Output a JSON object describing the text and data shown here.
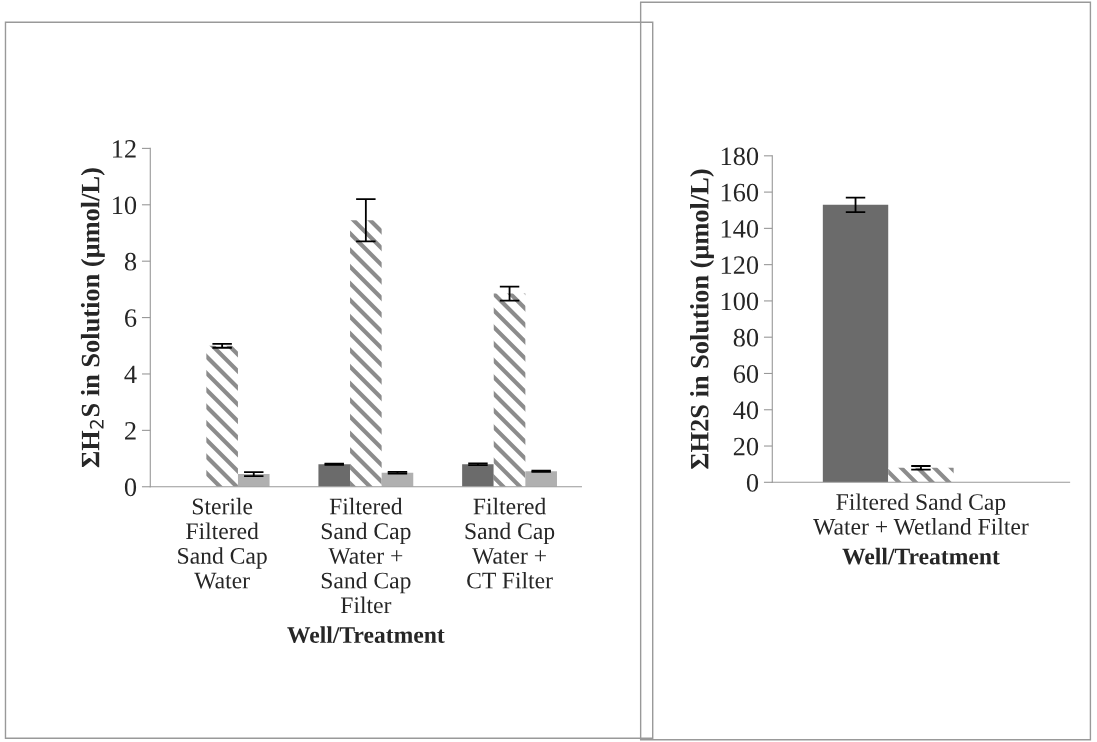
{
  "chart_data": [
    {
      "type": "bar",
      "ylabel": "ΣH$_{2}$S in Solution (μmol/L)",
      "xlabel": "Well/Treatment",
      "categories": [
        "Sterile\nFiltered\nSand Cap\nWater",
        "Filtered\nSand Cap\nWater +\nSand Cap\nFilter",
        "Filtered\nSand Cap\nWater +\nCT Filter"
      ],
      "ylim": [
        0,
        12
      ],
      "yticks": [
        0,
        2,
        4,
        6,
        8,
        10,
        12
      ],
      "grid": false,
      "legend": false,
      "series": [
        {
          "color": "#6b6b6b",
          "values": [
            0,
            0.8,
            0.8
          ],
          "errors": [
            null,
            0.02,
            0.03
          ]
        },
        {
          "color": "#8c8c8c",
          "values": [
            5.0,
            9.45,
            6.85
          ],
          "errors": [
            0.07,
            0.75,
            0.25
          ]
        },
        {
          "color": "#b0b0b0",
          "values": [
            0.45,
            0.5,
            0.55
          ],
          "errors": [
            0.07,
            0.03,
            0.02
          ]
        }
      ]
    },
    {
      "type": "bar",
      "ylabel": "ΣH2S in Solution (μmol/L)",
      "xlabel": "Well/Treatment",
      "categories": [
        "Filtered Sand Cap\nWater + Wetland Filter"
      ],
      "ylim": [
        0,
        180
      ],
      "yticks": [
        0,
        20,
        40,
        60,
        80,
        100,
        120,
        140,
        160,
        180
      ],
      "grid": false,
      "legend": false,
      "series": [
        {
          "color": "#6b6b6b",
          "values": [
            153
          ],
          "errors": [
            4
          ]
        },
        {
          "color": "#8c8c8c",
          "values": [
            8
          ],
          "errors": [
            1
          ]
        },
        {
          "color": "#b0b0b0",
          "values": [
            0
          ],
          "errors": [
            null
          ]
        }
      ]
    }
  ]
}
